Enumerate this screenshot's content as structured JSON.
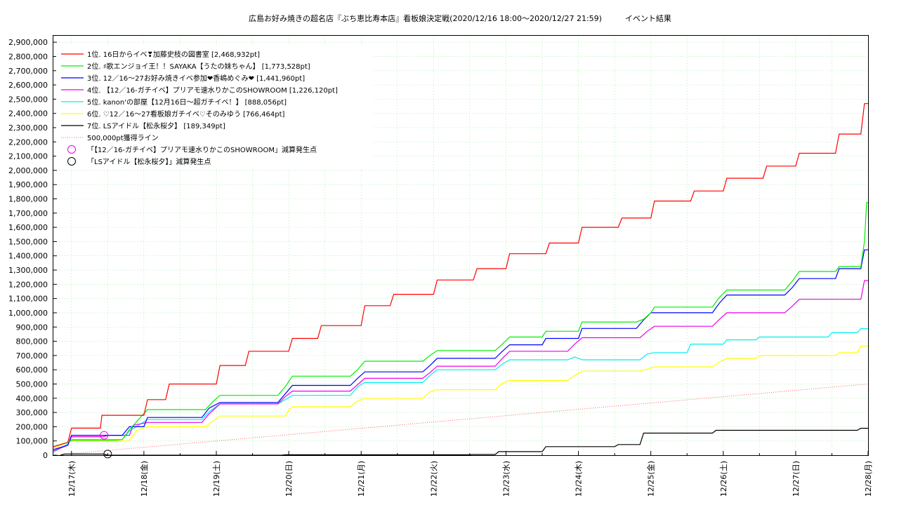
{
  "chart_data": {
    "type": "line",
    "title": "広島お好み焼きの超名店『ぶち恵比寿本店』看板娘決定戦(2020/12/16 18:00～2020/12/27 21:59)　　　イベント結果",
    "x_tick_labels": [
      "12/17(木)",
      "12/18(金)",
      "12/19(土)",
      "12/20(日)",
      "12/21(月)",
      "12/22(火)",
      "12/23(水)",
      "12/24(木)",
      "12/25(金)",
      "12/26(土)",
      "12/27(日)",
      "12/28(月)"
    ],
    "xlim": [
      16.75,
      28.0
    ],
    "ylim": [
      0,
      2950000
    ],
    "y_ticks": [
      0,
      100000,
      200000,
      300000,
      400000,
      500000,
      600000,
      700000,
      800000,
      900000,
      1000000,
      1100000,
      1200000,
      1300000,
      1400000,
      1500000,
      1600000,
      1700000,
      1800000,
      1900000,
      2000000,
      2100000,
      2200000,
      2300000,
      2400000,
      2500000,
      2600000,
      2700000,
      2800000,
      2900000
    ],
    "y_tick_labels": [
      "0",
      "100,000",
      "200,000",
      "300,000",
      "400,000",
      "500,000",
      "600,000",
      "700,000",
      "800,000",
      "900,000",
      "1,000,000",
      "1,100,000",
      "1,200,000",
      "1,300,000",
      "1,400,000",
      "1,500,000",
      "1,600,000",
      "1,700,000",
      "1,800,000",
      "1,900,000",
      "2,000,000",
      "2,100,000",
      "2,200,000",
      "2,300,000",
      "2,400,000",
      "2,500,000",
      "2,600,000",
      "2,700,000",
      "2,800,000",
      "2,900,000"
    ],
    "grid": true,
    "legend_position": "top-left",
    "series": [
      {
        "name": "1位. 16日からイベ❣加藤史枝の図書室 [2,468,932pt]",
        "color": "#ff0000",
        "points": [
          [
            16.75,
            60000
          ],
          [
            16.95,
            90000
          ],
          [
            17.0,
            190000
          ],
          [
            17.4,
            190000
          ],
          [
            17.42,
            280000
          ],
          [
            18.0,
            280000
          ],
          [
            18.05,
            390000
          ],
          [
            18.3,
            390000
          ],
          [
            18.35,
            500000
          ],
          [
            19.0,
            500000
          ],
          [
            19.05,
            630000
          ],
          [
            19.4,
            630000
          ],
          [
            19.45,
            730000
          ],
          [
            20.0,
            730000
          ],
          [
            20.05,
            820000
          ],
          [
            20.4,
            820000
          ],
          [
            20.45,
            910000
          ],
          [
            21.0,
            910000
          ],
          [
            21.05,
            1050000
          ],
          [
            21.4,
            1050000
          ],
          [
            21.45,
            1130000
          ],
          [
            22.0,
            1130000
          ],
          [
            22.05,
            1230000
          ],
          [
            22.55,
            1230000
          ],
          [
            22.6,
            1310000
          ],
          [
            23.0,
            1310000
          ],
          [
            23.05,
            1415000
          ],
          [
            23.55,
            1415000
          ],
          [
            23.6,
            1490000
          ],
          [
            24.0,
            1490000
          ],
          [
            24.05,
            1600000
          ],
          [
            24.55,
            1600000
          ],
          [
            24.6,
            1665000
          ],
          [
            25.0,
            1665000
          ],
          [
            25.05,
            1785000
          ],
          [
            25.55,
            1785000
          ],
          [
            25.6,
            1855000
          ],
          [
            26.0,
            1855000
          ],
          [
            26.05,
            1945000
          ],
          [
            26.55,
            1945000
          ],
          [
            26.6,
            2030000
          ],
          [
            27.0,
            2030000
          ],
          [
            27.05,
            2120000
          ],
          [
            27.55,
            2120000
          ],
          [
            27.6,
            2255000
          ],
          [
            27.9,
            2255000
          ],
          [
            27.95,
            2468932
          ],
          [
            28.0,
            2468932
          ]
        ]
      },
      {
        "name": "2位. ♯歌エンジョイ王！！SAYAKA【うたの妹ちゃん】 [1,773,528pt]",
        "color": "#00ee00",
        "points": [
          [
            16.75,
            60000
          ],
          [
            16.95,
            90000
          ],
          [
            17.0,
            105000
          ],
          [
            17.6,
            105000
          ],
          [
            17.7,
            110000
          ],
          [
            17.8,
            180000
          ],
          [
            18.05,
            320000
          ],
          [
            18.85,
            320000
          ],
          [
            18.95,
            375000
          ],
          [
            19.05,
            420000
          ],
          [
            19.85,
            420000
          ],
          [
            19.95,
            480000
          ],
          [
            20.05,
            555000
          ],
          [
            20.85,
            555000
          ],
          [
            20.95,
            600000
          ],
          [
            21.05,
            660000
          ],
          [
            21.85,
            660000
          ],
          [
            21.95,
            700000
          ],
          [
            22.05,
            735000
          ],
          [
            22.85,
            735000
          ],
          [
            22.95,
            780000
          ],
          [
            23.05,
            830000
          ],
          [
            23.5,
            830000
          ],
          [
            23.55,
            870000
          ],
          [
            24.0,
            870000
          ],
          [
            24.05,
            935000
          ],
          [
            24.8,
            935000
          ],
          [
            24.9,
            955000
          ],
          [
            25.0,
            1000000
          ],
          [
            25.05,
            1040000
          ],
          [
            25.85,
            1040000
          ],
          [
            25.95,
            1110000
          ],
          [
            26.05,
            1160000
          ],
          [
            26.85,
            1160000
          ],
          [
            26.95,
            1220000
          ],
          [
            27.05,
            1290000
          ],
          [
            27.55,
            1290000
          ],
          [
            27.6,
            1325000
          ],
          [
            27.9,
            1325000
          ],
          [
            27.95,
            1500000
          ],
          [
            27.98,
            1773528
          ],
          [
            28.0,
            1773528
          ]
        ]
      },
      {
        "name": "3位. 12／16〜27お好み焼きイベ参加❤香嶋めぐみ❤ [1,441,960pt]",
        "color": "#0000ff",
        "points": [
          [
            16.75,
            40000
          ],
          [
            16.95,
            70000
          ],
          [
            17.0,
            140000
          ],
          [
            17.7,
            140000
          ],
          [
            17.8,
            200000
          ],
          [
            18.0,
            200000
          ],
          [
            18.05,
            265000
          ],
          [
            18.8,
            265000
          ],
          [
            18.9,
            330000
          ],
          [
            19.05,
            370000
          ],
          [
            19.85,
            370000
          ],
          [
            19.95,
            430000
          ],
          [
            20.05,
            490000
          ],
          [
            20.85,
            490000
          ],
          [
            20.95,
            540000
          ],
          [
            21.05,
            585000
          ],
          [
            21.85,
            585000
          ],
          [
            21.95,
            630000
          ],
          [
            22.05,
            680000
          ],
          [
            22.85,
            680000
          ],
          [
            22.95,
            730000
          ],
          [
            23.05,
            775000
          ],
          [
            23.5,
            775000
          ],
          [
            23.55,
            820000
          ],
          [
            24.0,
            820000
          ],
          [
            24.05,
            890000
          ],
          [
            24.8,
            890000
          ],
          [
            24.9,
            950000
          ],
          [
            25.0,
            1000000
          ],
          [
            25.85,
            1000000
          ],
          [
            25.95,
            1070000
          ],
          [
            26.05,
            1125000
          ],
          [
            26.85,
            1125000
          ],
          [
            26.95,
            1175000
          ],
          [
            27.05,
            1240000
          ],
          [
            27.55,
            1240000
          ],
          [
            27.6,
            1310000
          ],
          [
            27.9,
            1310000
          ],
          [
            27.95,
            1441960
          ],
          [
            28.0,
            1441960
          ]
        ]
      },
      {
        "name": "4位. 【12／16-ガチイベ】プリアモ速水りかこのSHOWROOM [1,226,120pt]",
        "color": "#ee00ee",
        "points": [
          [
            16.75,
            30000
          ],
          [
            16.95,
            70000
          ],
          [
            17.0,
            130000
          ],
          [
            17.45,
            130000
          ],
          [
            17.5,
            140000
          ],
          [
            17.8,
            140000
          ],
          [
            17.85,
            210000
          ],
          [
            18.05,
            230000
          ],
          [
            18.8,
            230000
          ],
          [
            18.9,
            290000
          ],
          [
            19.05,
            360000
          ],
          [
            19.85,
            360000
          ],
          [
            19.95,
            410000
          ],
          [
            20.05,
            450000
          ],
          [
            20.85,
            450000
          ],
          [
            20.95,
            495000
          ],
          [
            21.05,
            540000
          ],
          [
            21.85,
            540000
          ],
          [
            21.95,
            580000
          ],
          [
            22.05,
            625000
          ],
          [
            22.85,
            625000
          ],
          [
            22.95,
            680000
          ],
          [
            23.05,
            730000
          ],
          [
            23.85,
            730000
          ],
          [
            23.95,
            780000
          ],
          [
            24.05,
            825000
          ],
          [
            24.85,
            825000
          ],
          [
            24.95,
            870000
          ],
          [
            25.05,
            905000
          ],
          [
            25.85,
            905000
          ],
          [
            25.95,
            955000
          ],
          [
            26.05,
            1000000
          ],
          [
            26.85,
            1000000
          ],
          [
            26.95,
            1045000
          ],
          [
            27.05,
            1095000
          ],
          [
            27.9,
            1095000
          ],
          [
            27.95,
            1226120
          ],
          [
            28.0,
            1226120
          ]
        ]
      },
      {
        "name": "5位. kanon'の部屋【12月16日〜超ガチイベ！】 [888,056pt]",
        "color": "#00eeee",
        "points": [
          [
            16.75,
            20000
          ],
          [
            16.95,
            80000
          ],
          [
            17.0,
            110000
          ],
          [
            17.7,
            110000
          ],
          [
            17.8,
            170000
          ],
          [
            18.05,
            250000
          ],
          [
            18.8,
            250000
          ],
          [
            18.9,
            305000
          ],
          [
            19.05,
            360000
          ],
          [
            19.85,
            360000
          ],
          [
            19.95,
            390000
          ],
          [
            20.05,
            420000
          ],
          [
            20.85,
            420000
          ],
          [
            20.95,
            480000
          ],
          [
            21.05,
            510000
          ],
          [
            21.85,
            510000
          ],
          [
            21.95,
            560000
          ],
          [
            22.05,
            600000
          ],
          [
            22.85,
            600000
          ],
          [
            22.95,
            640000
          ],
          [
            23.05,
            670000
          ],
          [
            23.85,
            670000
          ],
          [
            23.95,
            690000
          ],
          [
            24.05,
            670000
          ],
          [
            24.85,
            670000
          ],
          [
            24.95,
            710000
          ],
          [
            25.05,
            720000
          ],
          [
            25.5,
            720000
          ],
          [
            25.55,
            780000
          ],
          [
            26.0,
            780000
          ],
          [
            26.05,
            810000
          ],
          [
            26.45,
            810000
          ],
          [
            26.5,
            830000
          ],
          [
            27.45,
            830000
          ],
          [
            27.5,
            860000
          ],
          [
            27.85,
            860000
          ],
          [
            27.9,
            890000
          ],
          [
            28.0,
            888056
          ]
        ]
      },
      {
        "name": "6位. ♡12／16〜27看板娘ガチイベ♡そのみゆう [766,464pt]",
        "color": "#ffff00",
        "points": [
          [
            16.75,
            50000
          ],
          [
            16.95,
            90000
          ],
          [
            17.0,
            100000
          ],
          [
            17.8,
            100000
          ],
          [
            17.9,
            175000
          ],
          [
            18.05,
            200000
          ],
          [
            18.85,
            200000
          ],
          [
            18.95,
            240000
          ],
          [
            19.05,
            275000
          ],
          [
            19.95,
            275000
          ],
          [
            20.0,
            315000
          ],
          [
            20.05,
            340000
          ],
          [
            20.85,
            340000
          ],
          [
            20.95,
            380000
          ],
          [
            21.05,
            400000
          ],
          [
            21.85,
            400000
          ],
          [
            21.95,
            445000
          ],
          [
            22.05,
            460000
          ],
          [
            22.85,
            460000
          ],
          [
            22.95,
            505000
          ],
          [
            23.05,
            525000
          ],
          [
            23.85,
            525000
          ],
          [
            23.95,
            560000
          ],
          [
            24.05,
            590000
          ],
          [
            24.85,
            590000
          ],
          [
            24.95,
            605000
          ],
          [
            25.05,
            620000
          ],
          [
            25.85,
            620000
          ],
          [
            25.95,
            655000
          ],
          [
            26.05,
            680000
          ],
          [
            26.45,
            680000
          ],
          [
            26.5,
            700000
          ],
          [
            27.55,
            700000
          ],
          [
            27.6,
            720000
          ],
          [
            27.85,
            720000
          ],
          [
            27.9,
            766464
          ],
          [
            28.0,
            766464
          ]
        ]
      },
      {
        "name": "7位. LSアイドル【松永桜夕】 [189,349pt]",
        "color": "#000000",
        "points": [
          [
            16.85,
            0
          ],
          [
            16.9,
            8000
          ],
          [
            17.45,
            8000
          ],
          [
            17.5,
            0
          ],
          [
            19.9,
            0
          ],
          [
            19.95,
            3000
          ],
          [
            22.5,
            3000
          ],
          [
            22.55,
            5000
          ],
          [
            22.85,
            5000
          ],
          [
            22.9,
            25000
          ],
          [
            23.5,
            25000
          ],
          [
            23.55,
            60000
          ],
          [
            24.5,
            60000
          ],
          [
            24.55,
            75000
          ],
          [
            24.85,
            75000
          ],
          [
            24.9,
            155000
          ],
          [
            25.85,
            155000
          ],
          [
            25.9,
            175000
          ],
          [
            27.85,
            175000
          ],
          [
            27.9,
            189349
          ],
          [
            28.0,
            189349
          ]
        ]
      }
    ],
    "reference_line": {
      "name": "500,000pt獲得ライン",
      "color": "#ff6666",
      "points": [
        [
          16.75,
          0
        ],
        [
          28.0,
          500000
        ]
      ]
    },
    "markers": [
      {
        "name": "「【12／16-ガチイベ】プリアモ速水りかこのSHOWROOM」減算発生点",
        "color": "#ee00ee",
        "x": 17.45,
        "y": 140000
      },
      {
        "name": "「LSアイドル【松永桜夕】」減算発生点",
        "color": "#000000",
        "x": 17.5,
        "y": 8000
      }
    ]
  }
}
